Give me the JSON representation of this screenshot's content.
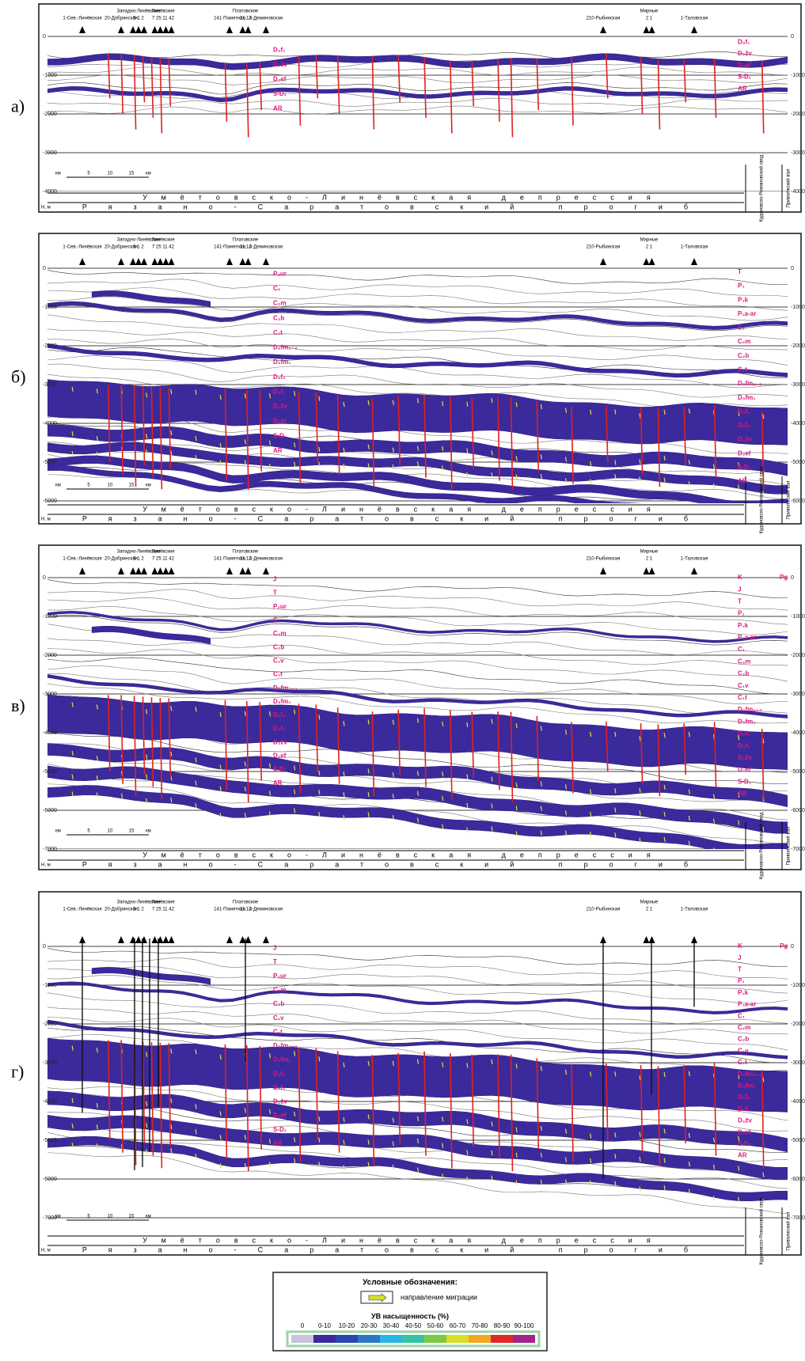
{
  "panels": [
    {
      "label": "а)",
      "depth_ticks": [
        "0",
        "-1000",
        "-2000",
        "-3000",
        "-4000"
      ],
      "formations_left": [
        "D₃f₁",
        "D₂žv",
        "D₂ef",
        "S-D₁",
        "AR"
      ],
      "formations_right": [
        "D₃f₁",
        "D₂žv",
        "D₂ef",
        "S-D₁",
        "AR"
      ]
    },
    {
      "label": "б)",
      "depth_ticks": [
        "0",
        "-1000",
        "-2000",
        "-3000",
        "-4000",
        "-5000",
        "-6000"
      ],
      "formations_left": [
        "P₂ur",
        "C₂",
        "C₂m",
        "C₂b",
        "C₁t",
        "D₃fm₂₋₃",
        "D₃fm₁",
        "D₃f₂",
        "D₃f₁",
        "D₂žv",
        "D₂ef",
        "S-D₁",
        "AR"
      ],
      "formations_right": [
        "T",
        "P₁",
        "P₁k",
        "P₁a-ar",
        "C₁",
        "C₂m",
        "C₂b",
        "C₁t",
        "D₃fm₂₋₃",
        "D₃fm₁",
        "D₃f₂",
        "D₃f₁",
        "D₂žv",
        "D₂ef",
        "S-D₁",
        "AR"
      ]
    },
    {
      "label": "в)",
      "depth_ticks": [
        "0",
        "-1000",
        "-2000",
        "-3000",
        "-4000",
        "-5000",
        "-6000",
        "-7000"
      ],
      "formations_left": [
        "J",
        "T",
        "P₂ur",
        "C₁",
        "C₂m",
        "C₂b",
        "C₁v",
        "C₁t",
        "D₃fm₂₋₃",
        "D₃fm₁",
        "D₃f₂",
        "D₃f₁",
        "D₂žv",
        "D₂ef",
        "S-D₁",
        "AR"
      ],
      "formations_right": [
        "K",
        "J",
        "T",
        "P₁",
        "P₁k",
        "P₁a-ar",
        "C₁",
        "C₂m",
        "C₂b",
        "C₁v",
        "C₁t",
        "D₃fm₂₋₃",
        "D₃fm₁",
        "D₃f₂",
        "D₃f₁",
        "D₂žv",
        "D₂ef",
        "S-D₁",
        "AR"
      ]
    },
    {
      "label": "г)",
      "depth_ticks": [
        "0",
        "-1000",
        "-2000",
        "-3000",
        "-4000",
        "-5000",
        "-6000",
        "-7000"
      ],
      "formations_left": [
        "J",
        "T",
        "P₂ur",
        "C₂m",
        "C₂b",
        "C₁v",
        "C₁t",
        "D₃fm₂₋₃",
        "D₃fm₁",
        "D₃f₂",
        "D₃f₁",
        "D₂žv",
        "D₂ef",
        "S-D₁",
        "AR"
      ],
      "formations_right": [
        "K",
        "J",
        "T",
        "P₁",
        "P₁k",
        "P₁a-ar",
        "C₁",
        "C₂m",
        "C₂b",
        "C₁v",
        "C₁t",
        "D₃fm₂₋₃",
        "D₃fm₁",
        "D₃f₂",
        "D₃f₁",
        "D₂žv",
        "D₂ef",
        "S-D₁",
        "AR"
      ]
    }
  ],
  "wells": [
    {
      "name": "1-Сев.-Линёвская"
    },
    {
      "name": "20-Добринская"
    },
    {
      "name": "Западно-Линёвские",
      "numbers": "5 1 2"
    },
    {
      "name": "Линёвские",
      "numbers": "7 25 11 42"
    },
    {
      "name": "141-Памятная"
    },
    {
      "name": "Платовские",
      "numbers": "11,12"
    },
    {
      "name": "4-Деминовская"
    },
    {
      "name": "210-Рыбинская"
    },
    {
      "name": "Мирные",
      "numbers": "2 1"
    },
    {
      "name": "1-Таловская"
    }
  ],
  "pg_label": "Pg",
  "scale": {
    "unit": "км",
    "marks": [
      "5",
      "10",
      "15"
    ]
  },
  "depth_unit": "Н, м",
  "depression": "Умётовско-Линёвская депрессия",
  "trough": "Рязано-Саратовский прогиб",
  "arch": "Кудиновско-Романовский свод",
  "swell": "Приволжский вал",
  "legend": {
    "title": "Условные обозначения:",
    "migration": "направление миграции",
    "saturation_title": "УВ насыщенность (%)",
    "items": [
      {
        "label": "0",
        "color": "#c9c3de"
      },
      {
        "label": "0-10",
        "color": "#3b2a9c"
      },
      {
        "label": "10-20",
        "color": "#2b46b0"
      },
      {
        "label": "20-30",
        "color": "#2b77c4"
      },
      {
        "label": "30-40",
        "color": "#2bb5e2"
      },
      {
        "label": "40-50",
        "color": "#36c3a3"
      },
      {
        "label": "50-60",
        "color": "#7cc843"
      },
      {
        "label": "60-70",
        "color": "#d6e024"
      },
      {
        "label": "70-80",
        "color": "#f3a623"
      },
      {
        "label": "80-90",
        "color": "#e1262b"
      },
      {
        "label": "90-100",
        "color": "#a0248d"
      }
    ]
  }
}
